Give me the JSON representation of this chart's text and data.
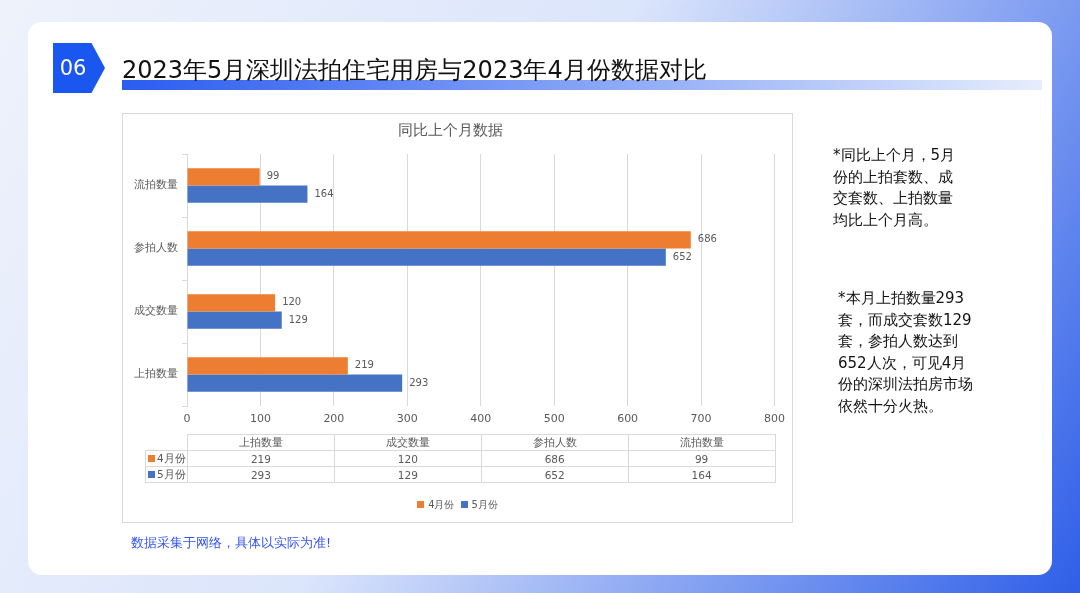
{
  "chart_data": [
    {
      "type": "bar",
      "orientation": "horizontal",
      "title": "2023年5月深圳法拍住宅用房与2023年4月份数据对比",
      "subtitle": "同比上个月数据",
      "categories": [
        "流拍数量",
        "参拍人数",
        "成交数量",
        "上拍数量"
      ],
      "series": [
        {
          "name": "4月份",
          "color": "#ed7d31",
          "values": [
            99,
            686,
            120,
            219
          ]
        },
        {
          "name": "5月份",
          "color": "#4472c4",
          "values": [
            164,
            652,
            129,
            293
          ]
        }
      ],
      "xlim": [
        0,
        800
      ],
      "xticks": [
        0,
        100,
        200,
        300,
        400,
        500,
        600,
        700,
        800
      ],
      "grid": "x",
      "legend": "bottom",
      "data_labels": true,
      "annotations": [
        "06",
        "*同比上个月，5月份的上拍套数、成交套数、上拍数量均比上个月高。",
        "*本月上拍数量293套，而成交套数129套，参拍人数达到652人次，可见4月份的深圳法拍房市场依然十分火热。",
        "数据采集于网络，具体以实际为准!"
      ]
    },
    {
      "type": "other",
      "categories": [
        "上拍数量",
        "成交数量",
        "参拍人数",
        "流拍数量"
      ],
      "series": [
        {
          "name": "4月份",
          "color": "#ed7d31",
          "values": [
            219,
            120,
            686,
            99
          ]
        },
        {
          "name": "5月份",
          "color": "#4472c4",
          "values": [
            293,
            129,
            652,
            164
          ]
        }
      ],
      "data_labels": true
    }
  ]
}
